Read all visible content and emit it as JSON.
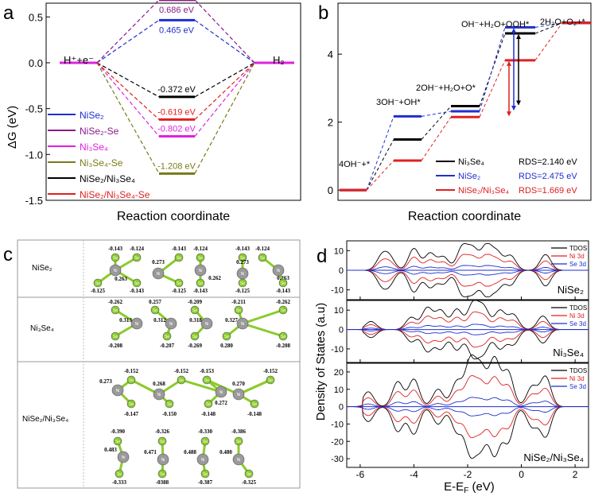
{
  "chart_data": [
    {
      "panel": "a",
      "type": "line",
      "title": "",
      "ylabel": "ΔG (eV)",
      "xlabel": "Reaction coordinate",
      "ylim": [
        -1.5,
        0.65
      ],
      "yticks": [
        "0.5",
        "0.0",
        "-0.5",
        "-1.0",
        "-1.5"
      ],
      "yticks_v": [
        0.5,
        0.0,
        -0.5,
        -1.0,
        -1.5
      ],
      "start_label": "H⁺+e⁻",
      "end_label": "H₂",
      "series": [
        {
          "name": "NiSe2",
          "legend": "NiSe₂",
          "color": "#1f2fcf",
          "value": 0.465,
          "label": "0.465 eV"
        },
        {
          "name": "NiSe2-Se",
          "legend": "NiSe₂-Se",
          "color": "#8a1a8a",
          "value": 0.686,
          "label": "0.686 eV"
        },
        {
          "name": "Ni3Se4",
          "legend": "Ni₃Se₄",
          "color": "#e020e0",
          "value": -0.802,
          "label": "-0.802 eV"
        },
        {
          "name": "Ni3Se4-Se",
          "legend": "Ni₃Se₄-Se",
          "color": "#7a7a1a",
          "value": -1.208,
          "label": "-1.208 eV"
        },
        {
          "name": "NiSe2/Ni3Se4",
          "legend": "NiSe₂/Ni₃Se₄",
          "color": "#000000",
          "value": -0.372,
          "label": "-0.372 eV"
        },
        {
          "name": "NiSe2/Ni3Se4-Se",
          "legend": "NiSe₂/Ni₃Se₄-Se",
          "color": "#e02020",
          "value": -0.619,
          "label": "-0.619 eV"
        }
      ]
    },
    {
      "panel": "b",
      "type": "line",
      "xlabel": "Reaction coordinate",
      "ylim": [
        -0.3,
        5.5
      ],
      "yticks": [
        "0",
        "2",
        "4"
      ],
      "yticks_v": [
        0,
        2,
        4
      ],
      "step_labels": [
        "4OH⁻+*",
        "3OH⁻+OH*",
        "2OH⁻+H₂O+O*",
        "OH⁻+H₂O+OOH*",
        "2H₂O+O₂+*"
      ],
      "series": [
        {
          "name": "Ni3Se4",
          "legend": "Ni₃Se₄",
          "rds": "RDS=2.140 eV",
          "color": "#000000",
          "values": [
            0,
            1.49,
            2.47,
            4.61,
            4.92
          ]
        },
        {
          "name": "NiSe2",
          "legend": "NiSe₂",
          "rds": "RDS=2.475 eV",
          "color": "#1f2fcf",
          "values": [
            0,
            2.17,
            2.32,
            4.79,
            4.92
          ]
        },
        {
          "name": "NiSe2/Ni3Se4",
          "legend": "NiSe₂/Ni₃Se₄",
          "rds": "RDS=1.669 eV",
          "color": "#e02020",
          "values": [
            0,
            0.87,
            2.15,
            3.82,
            4.92
          ]
        }
      ]
    },
    {
      "panel": "d",
      "type": "line",
      "xlabel": "E-E_F (eV)",
      "ylabel": "Density of States (a.u)",
      "xlim": [
        -6.5,
        2.5
      ],
      "xticks": [
        "-6",
        "-4",
        "-2",
        "0",
        "2"
      ],
      "xticks_v": [
        -6,
        -4,
        -2,
        0,
        2
      ],
      "subplots": [
        {
          "name": "NiSe2",
          "label": "NiSe₂",
          "ylim": [
            -15,
            15
          ],
          "yticks": [
            "10",
            "0",
            "-10"
          ],
          "yticks_v": [
            10,
            0,
            -10
          ],
          "legend": [
            "TDOS",
            "Ni 3d",
            "Se 3d"
          ]
        },
        {
          "name": "Ni3Se4",
          "label": "Ni₃Se₄",
          "ylim": [
            -17,
            15
          ],
          "yticks": [
            "10",
            "0",
            "-10"
          ],
          "yticks_v": [
            10,
            0,
            -10
          ],
          "legend": [
            "TDOS",
            "Ni 3d",
            "Se 3d"
          ]
        },
        {
          "name": "NiSe2/Ni3Se4",
          "label": "NiSe₂/Ni₃Se₄",
          "ylim": [
            -35,
            25
          ],
          "yticks": [
            "20",
            "10",
            "0",
            "-10",
            "-20",
            "-30"
          ],
          "yticks_v": [
            20,
            10,
            0,
            -10,
            -20,
            -30
          ],
          "legend": [
            "TDOS",
            "Ni 3d",
            "Se 3d"
          ]
        }
      ],
      "peaks": [
        {
          "x": [
            -5.2,
            -4.9,
            -4.0,
            -3.4,
            -2.9,
            -2.2,
            -1.8,
            -1.3,
            -0.9,
            -0.4,
            0.9
          ],
          "h": [
            0.55,
            0.5,
            0.9,
            0.7,
            0.55,
            0.95,
            0.85,
            1.0,
            0.7,
            0.6,
            0.65
          ]
        },
        {
          "x": [
            -5.6,
            -4.1,
            -3.5,
            -3.0,
            -2.4,
            -1.8,
            -1.4,
            -0.8,
            -0.3,
            0.8
          ],
          "h": [
            0.3,
            0.45,
            0.8,
            0.7,
            0.75,
            0.95,
            0.8,
            0.7,
            0.55,
            0.5
          ]
        },
        {
          "x": [
            -5.7,
            -4.6,
            -4.0,
            -3.1,
            -2.4,
            -1.9,
            -1.5,
            -1.0,
            -0.5,
            0.4,
            0.9
          ],
          "h": [
            0.3,
            0.5,
            0.55,
            0.35,
            0.5,
            0.9,
            0.75,
            0.95,
            0.7,
            0.4,
            0.6
          ]
        }
      ]
    }
  ],
  "panel_letters": {
    "a": "a",
    "b": "b",
    "c": "c",
    "d": "d"
  },
  "panel_c": {
    "rows": [
      {
        "label": "NiSe₂",
        "top_charges": [
          "-0.143",
          "-0.124",
          "-0.143",
          "-0.124",
          "-0.143",
          "-0.124"
        ],
        "mid_charges": [
          "0.273",
          "0.273"
        ],
        "low_charges": [
          "0.263",
          "0.262",
          "0.263"
        ],
        "bottom_charges": [
          "-0.125",
          "-0.143",
          "-0.125",
          "-0.143",
          "-0.125",
          "-0.143"
        ]
      },
      {
        "label": "Ni₃Se₄",
        "top_charges": [
          "-0.262",
          "0.257",
          "-0.209",
          "-0.211",
          "-0.262"
        ],
        "mid_charges": [
          "0.313",
          "0.312",
          "0.318",
          "0.327"
        ],
        "bottom_charges": [
          "-0.208",
          "-0.207",
          "-0.269",
          "0.280",
          "-0.208"
        ]
      },
      {
        "label": "NiSe₂/Ni₃Se₄",
        "upper_top": [
          "-0.152",
          "-0.152",
          "-0.153",
          "-0.152"
        ],
        "upper_mid": [
          "0.273",
          "0.268",
          "0.270"
        ],
        "upper_low": [
          "0.272"
        ],
        "upper_bottom": [
          "-0.147",
          "-0.150",
          "-0.148",
          "-0.148"
        ],
        "lower_top": [
          "-0.390",
          "-0.326",
          "-0.330",
          "-0.386"
        ],
        "lower_mid": [
          "0.483",
          "0.471",
          "0.488",
          "0.480"
        ],
        "lower_bottom": [
          "-0.333",
          "-0388",
          "-0.387",
          "-0.325"
        ]
      }
    ]
  }
}
